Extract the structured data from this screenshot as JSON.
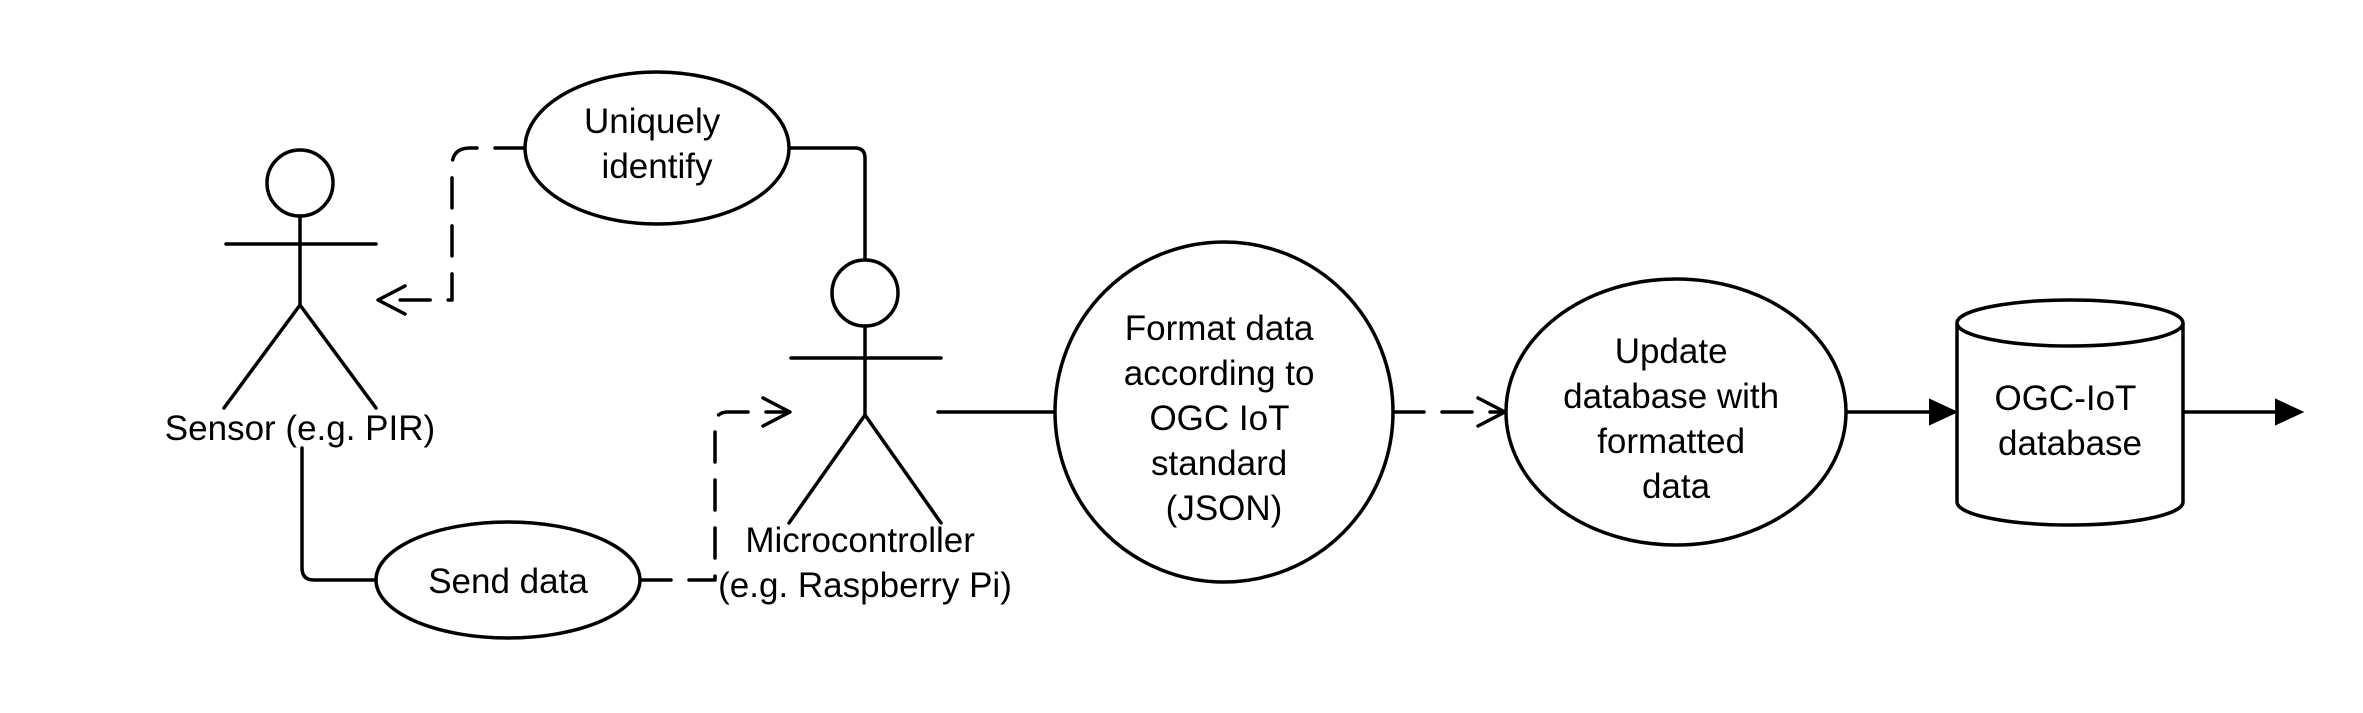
{
  "actors": {
    "sensor": {
      "label_lines": [
        "Sensor (e.g. PIR)"
      ]
    },
    "microcontroller": {
      "label_lines": [
        "Microcontroller",
        "(e.g. Raspberry Pi)"
      ]
    }
  },
  "use_cases": {
    "uniquely_identify": {
      "lines": [
        "Uniquely",
        "identify"
      ]
    },
    "send_data": {
      "lines": [
        "Send data"
      ]
    },
    "format_data": {
      "lines": [
        "Format data",
        "according to",
        "OGC IoT",
        "standard",
        "(JSON)"
      ]
    },
    "update_database": {
      "lines": [
        "Update",
        "database with",
        "formatted",
        "data"
      ]
    }
  },
  "database": {
    "lines": [
      "OGC-IoT",
      "database"
    ]
  }
}
